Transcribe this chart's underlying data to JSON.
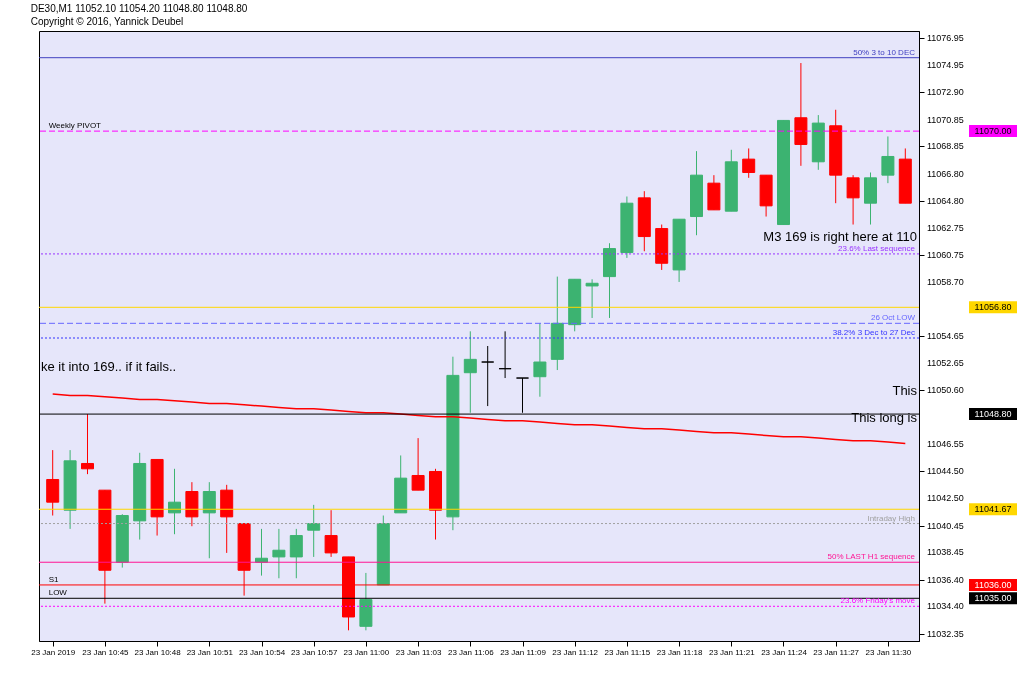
{
  "chart_data": {
    "type": "candlestick",
    "title": "DE30,M1  11052.10 11054.20 11048.80 11048.80",
    "subtitle": "Copyright © 2016, Yannick Deubel",
    "categories": [
      "23 Jan 2019",
      null,
      null,
      "23 Jan 10:45",
      null,
      null,
      "23 Jan 10:48",
      null,
      null,
      "23 Jan 10:51",
      null,
      null,
      "23 Jan 10:54",
      null,
      null,
      "23 Jan 10:57",
      null,
      null,
      "23 Jan 11:00",
      null,
      null,
      "23 Jan 11:03",
      null,
      null,
      "23 Jan 11:06",
      null,
      null,
      "23 Jan 11:09",
      null,
      null,
      "23 Jan 11:12",
      null,
      null,
      "23 Jan 11:15",
      null,
      null,
      "23 Jan 11:18",
      null,
      null,
      "23 Jan 11:21",
      null,
      null,
      "23 Jan 11:24",
      null,
      null,
      "23 Jan 11:27",
      null,
      null,
      "23 Jan 11:30",
      null
    ],
    "ohlc": [
      [
        11043.9,
        11046.1,
        11041.2,
        11042.2
      ],
      [
        11041.6,
        11046.1,
        11040.2,
        11045.3
      ],
      [
        11045.1,
        11048.8,
        11044.3,
        11044.7
      ],
      [
        11043.1,
        11043.1,
        11034.6,
        11037.1
      ],
      [
        11037.7,
        11041.3,
        11037.3,
        11041.2
      ],
      [
        11040.8,
        11045.9,
        11039.4,
        11045.1
      ],
      [
        11045.4,
        11045.4,
        11039.7,
        11041.1
      ],
      [
        11041.4,
        11044.7,
        11039.8,
        11042.2
      ],
      [
        11043.0,
        11043.7,
        11040.4,
        11041.1
      ],
      [
        11041.4,
        11043.7,
        11038.0,
        11043.0
      ],
      [
        11043.1,
        11043.5,
        11038.4,
        11041.1
      ],
      [
        11040.6,
        11040.6,
        11035.2,
        11037.1
      ],
      [
        11037.7,
        11040.2,
        11036.7,
        11038.0
      ],
      [
        11038.1,
        11040.2,
        11036.5,
        11038.6
      ],
      [
        11038.1,
        11040.2,
        11036.5,
        11039.7
      ],
      [
        11040.1,
        11042.0,
        11038.1,
        11040.6
      ],
      [
        11039.7,
        11041.6,
        11038.1,
        11038.4
      ],
      [
        11038.1,
        11038.1,
        11032.6,
        11033.6
      ],
      [
        11032.9,
        11036.9,
        11032.6,
        11034.9
      ],
      [
        11036.0,
        11041.2,
        11036.0,
        11040.6
      ],
      [
        11041.4,
        11045.7,
        11041.4,
        11044.0
      ],
      [
        11044.2,
        11047.0,
        11043.1,
        11043.1
      ],
      [
        11044.5,
        11044.7,
        11039.4,
        11041.6
      ],
      [
        11041.1,
        11053.1,
        11040.1,
        11051.7
      ],
      [
        11051.9,
        11055.0,
        11048.9,
        11052.9
      ],
      [
        11052.7,
        11053.9,
        11049.4,
        11052.7
      ],
      [
        11052.2,
        11055.0,
        11051.5,
        11052.2
      ],
      [
        11051.5,
        11051.5,
        11048.9,
        11051.5
      ],
      [
        11051.6,
        11055.6,
        11050.1,
        11052.7
      ],
      [
        11052.9,
        11059.1,
        11052.1,
        11055.6
      ],
      [
        11055.5,
        11058.9,
        11055.0,
        11058.9
      ],
      [
        11058.4,
        11058.9,
        11056.0,
        11058.6
      ],
      [
        11059.1,
        11061.6,
        11056.0,
        11061.2
      ],
      [
        11060.9,
        11065.1,
        11060.5,
        11064.6
      ],
      [
        11065.0,
        11065.5,
        11061.0,
        11062.1
      ],
      [
        11062.7,
        11063.0,
        11059.6,
        11060.1
      ],
      [
        11059.6,
        11063.4,
        11058.7,
        11063.4
      ],
      [
        11063.6,
        11068.5,
        11062.2,
        11066.7
      ],
      [
        11066.1,
        11066.7,
        11064.1,
        11064.1
      ],
      [
        11064.0,
        11068.6,
        11064.0,
        11067.7
      ],
      [
        11067.9,
        11068.7,
        11066.5,
        11066.9
      ],
      [
        11066.7,
        11066.7,
        11063.6,
        11064.4
      ],
      [
        11063.0,
        11070.8,
        11063.0,
        11070.8
      ],
      [
        11071.0,
        11075.1,
        11067.4,
        11069.0
      ],
      [
        11067.7,
        11071.2,
        11067.1,
        11070.6
      ],
      [
        11070.4,
        11071.6,
        11064.6,
        11066.7
      ],
      [
        11066.5,
        11066.7,
        11063.0,
        11065.0
      ],
      [
        11064.6,
        11066.9,
        11063.0,
        11066.5
      ],
      [
        11066.7,
        11069.6,
        11066.1,
        11068.1
      ],
      [
        11067.9,
        11068.7,
        11064.6,
        11064.6
      ]
    ],
    "colors": [
      "#ff0000",
      "#3cb371",
      "#ff0000",
      "#ff0000",
      "#3cb371",
      "#3cb371",
      "#ff0000",
      "#3cb371",
      "#ff0000",
      "#3cb371",
      "#ff0000",
      "#ff0000",
      "#3cb371",
      "#3cb371",
      "#3cb371",
      "#3cb371",
      "#ff0000",
      "#ff0000",
      "#3cb371",
      "#3cb371",
      "#3cb371",
      "#ff0000",
      "#ff0000",
      "#3cb371",
      "#3cb371",
      "#000000",
      "#000000",
      "#000000",
      "#3cb371",
      "#3cb371",
      "#3cb371",
      "#3cb371",
      "#3cb371",
      "#3cb371",
      "#ff0000",
      "#ff0000",
      "#3cb371",
      "#3cb371",
      "#ff0000",
      "#3cb371",
      "#ff0000",
      "#ff0000",
      "#3cb371",
      "#ff0000",
      "#3cb371",
      "#ff0000",
      "#ff0000",
      "#3cb371",
      "#3cb371",
      "#ff0000"
    ],
    "series": [
      {
        "type": "line",
        "color": "#ff0000",
        "values": [
          11050.3,
          11050.2,
          11050.2,
          11050.1,
          11050.0,
          11049.9,
          11049.9,
          11049.8,
          11049.7,
          11049.6,
          11049.6,
          11049.5,
          11049.4,
          11049.3,
          11049.2,
          11049.2,
          11049.1,
          11049.0,
          11048.9,
          11048.9,
          11048.8,
          11048.7,
          11048.6,
          11048.6,
          11048.5,
          11048.4,
          11048.3,
          11048.3,
          11048.2,
          11048.1,
          11048.0,
          11048.0,
          11047.9,
          11047.8,
          11047.7,
          11047.7,
          11047.6,
          11047.5,
          11047.4,
          11047.4,
          11047.3,
          11047.2,
          11047.1,
          11047.1,
          11047.0,
          11046.9,
          11046.8,
          11046.8,
          11046.7,
          11046.6
        ]
      }
    ],
    "ylim": [
      11031.8,
      11077.5
    ],
    "yticks": [
      11076.95,
      11074.95,
      {
        "value": 11072.9,
        "label": "11072.90"
      },
      11070.85,
      11068.85,
      {
        "value": 11066.8,
        "label": "11066.80"
      },
      {
        "value": 11064.8,
        "label": "11064.80"
      },
      11062.75,
      11060.75,
      {
        "value": 11058.7,
        "label": "11058.70"
      },
      11054.65,
      11052.65,
      {
        "value": 11050.6,
        "label": "11050.60"
      },
      11046.55,
      {
        "value": 11044.5,
        "label": "11044.50"
      },
      {
        "value": 11042.5,
        "label": "11042.50"
      },
      11040.45,
      11038.45,
      {
        "value": 11036.4,
        "label": "11036.40"
      },
      {
        "value": 11034.4,
        "label": "11034.40"
      },
      11032.35
    ],
    "ref_lines": [
      {
        "axis": "y",
        "value": 11075.5,
        "label": "50%  3 to 10 DEC",
        "color": "#4040c0",
        "line_style": "solid"
      },
      {
        "axis": "y",
        "value": 11070.0,
        "label": null,
        "color": "#ff00ff",
        "line_style": "dashed"
      },
      {
        "axis": "y",
        "value": 11060.8,
        "label": "23.6%  Last sequence",
        "color": "#9933ff",
        "line_style": "dotted"
      },
      {
        "axis": "y",
        "value": 11056.8,
        "label": null,
        "color": "#ffd700",
        "line_style": "solid"
      },
      {
        "axis": "y",
        "value": 11055.6,
        "label": "26 Oct LOW",
        "color": "#6666ff",
        "line_style": "dashed"
      },
      {
        "axis": "y",
        "value": 11054.5,
        "label": "38.2%  3 Dec to 27 Dec",
        "color": "#3333ff",
        "line_style": "dotted"
      },
      {
        "axis": "y",
        "value": 11048.8,
        "label": null,
        "color": "#000000",
        "line_style": "solid"
      },
      {
        "axis": "y",
        "value": 11041.67,
        "label": null,
        "color": "#ffd700",
        "line_style": "solid"
      },
      {
        "axis": "y",
        "value": 11040.6,
        "label": "Intraday High",
        "color": "#a0a0a0",
        "line_style": "dotted"
      },
      {
        "axis": "y",
        "value": 11037.7,
        "label": "50%  LAST H1 sequence",
        "color": "#ff1493",
        "line_style": "solid"
      },
      {
        "axis": "y",
        "value": 11036.0,
        "label": null,
        "color": "#ff0000",
        "line_style": "solid"
      },
      {
        "axis": "y",
        "value": 11035.0,
        "label": null,
        "color": "#000000",
        "line_style": "solid"
      },
      {
        "axis": "y",
        "value": 11034.4,
        "label": "23.6%  Friday's move",
        "color": "#ff00ff",
        "line_style": "dotted"
      }
    ],
    "annotations": [
      {
        "text": "Weekly PIVOT",
        "x": "23 Jan 2019",
        "y": 11070.0
      },
      {
        "text": "S1",
        "x": "23 Jan 2019",
        "y": 11036.0
      },
      {
        "text": "LOW",
        "x": "23 Jan 2019",
        "y": 11035.0
      },
      "11070.00",
      "11056.80",
      "11048.80",
      "11041.67",
      "11036.00",
      "11035.00",
      "ke it into 169.. if it fails..",
      "M3 169 is right here at 110",
      "This",
      "This long is"
    ],
    "grid": false
  }
}
